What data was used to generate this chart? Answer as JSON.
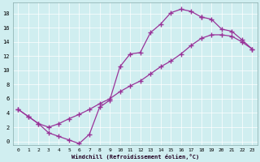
{
  "xlabel": "Windchill (Refroidissement éolien,°C)",
  "bg_color": "#d0eef0",
  "line_color": "#993399",
  "xlim": [
    -0.5,
    23.5
  ],
  "ylim": [
    -0.5,
    19.5
  ],
  "xticks": [
    0,
    1,
    2,
    3,
    4,
    5,
    6,
    7,
    8,
    9,
    10,
    11,
    12,
    13,
    14,
    15,
    16,
    17,
    18,
    19,
    20,
    21,
    22,
    23
  ],
  "yticks": [
    0,
    2,
    4,
    6,
    8,
    10,
    12,
    14,
    16,
    18
  ],
  "curve1_x": [
    0,
    1,
    2,
    3,
    4,
    5,
    6,
    7,
    8,
    9,
    10,
    11,
    12,
    13,
    14,
    15,
    16,
    17,
    18
  ],
  "curve1_y": [
    4.5,
    3.5,
    2.5,
    1.2,
    0.7,
    0.2,
    -0.3,
    1.0,
    4.8,
    5.8,
    10.5,
    12.3,
    12.5,
    15.3,
    16.5,
    18.1,
    18.6,
    18.3,
    17.5
  ],
  "curve2_x": [
    0,
    1,
    2,
    3,
    4,
    5,
    6,
    7,
    8,
    9,
    10,
    11,
    12,
    13,
    14,
    15,
    16,
    17,
    18,
    19,
    20,
    21,
    22,
    23
  ],
  "curve2_y": [
    4.5,
    3.5,
    2.5,
    2.0,
    2.5,
    3.2,
    3.8,
    4.5,
    5.3,
    6.0,
    7.0,
    7.8,
    8.5,
    9.5,
    10.5,
    11.3,
    12.3,
    13.5,
    14.5,
    15.0,
    15.0,
    14.8,
    14.0,
    13.0
  ],
  "curve3_x": [
    18,
    19,
    20,
    21,
    22,
    23
  ],
  "curve3_y": [
    17.5,
    17.2,
    15.8,
    15.5,
    14.3,
    13.0
  ]
}
